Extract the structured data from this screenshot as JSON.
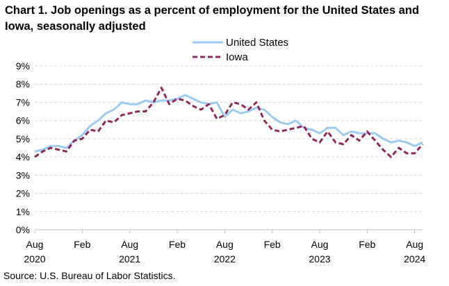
{
  "chart_data": {
    "type": "line",
    "title": "Chart 1. Job openings as a percent of employment for the United States and Iowa, seasonally adjusted",
    "xlabel": "",
    "ylabel": "",
    "ylim": [
      0,
      9
    ],
    "yticks": [
      "0%",
      "1%",
      "2%",
      "3%",
      "4%",
      "5%",
      "6%",
      "7%",
      "8%",
      "9%"
    ],
    "xticks": [
      {
        "index": 0,
        "label": "Aug",
        "year": "2020"
      },
      {
        "index": 6,
        "label": "Feb",
        "year": ""
      },
      {
        "index": 12,
        "label": "Aug",
        "year": "2021"
      },
      {
        "index": 18,
        "label": "Feb",
        "year": ""
      },
      {
        "index": 24,
        "label": "Aug",
        "year": "2022"
      },
      {
        "index": 30,
        "label": "Feb",
        "year": ""
      },
      {
        "index": 36,
        "label": "Aug",
        "year": "2023"
      },
      {
        "index": 42,
        "label": "Feb",
        "year": ""
      },
      {
        "index": 48,
        "label": "Aug",
        "year": "2024"
      }
    ],
    "grid": true,
    "legend_position": "top-right",
    "series": [
      {
        "name": "United States",
        "color": "#9dcaf0",
        "style": "solid",
        "values": [
          4.3,
          4.4,
          4.6,
          4.6,
          4.5,
          4.9,
          5.2,
          5.7,
          6.0,
          6.4,
          6.6,
          7.0,
          6.9,
          6.9,
          7.1,
          7.0,
          7.1,
          7.1,
          7.2,
          7.4,
          7.2,
          7.0,
          6.9,
          7.0,
          6.2,
          6.6,
          6.4,
          6.5,
          6.7,
          6.6,
          6.2,
          5.9,
          5.8,
          6.0,
          5.6,
          5.5,
          5.3,
          5.6,
          5.6,
          5.2,
          5.4,
          5.3,
          5.3,
          5.3,
          5.0,
          4.8,
          4.9,
          4.8,
          4.6,
          4.8
        ]
      },
      {
        "name": "Iowa",
        "color": "#8b2a5b",
        "style": "dashed",
        "values": [
          4.0,
          4.3,
          4.5,
          4.4,
          4.3,
          4.9,
          5.0,
          5.5,
          5.4,
          6.0,
          5.9,
          6.3,
          6.4,
          6.5,
          6.5,
          7.0,
          7.8,
          6.9,
          7.2,
          7.1,
          6.8,
          6.6,
          6.9,
          6.1,
          6.3,
          7.0,
          6.9,
          6.6,
          7.0,
          6.0,
          5.5,
          5.4,
          5.5,
          5.6,
          5.7,
          5.0,
          4.8,
          5.4,
          4.8,
          4.7,
          5.2,
          4.9,
          5.4,
          4.9,
          4.4,
          4.0,
          4.5,
          4.2,
          4.2,
          4.7
        ]
      }
    ]
  },
  "footer": {
    "source": "Source: U.S. Bureau of Labor Statistics."
  }
}
